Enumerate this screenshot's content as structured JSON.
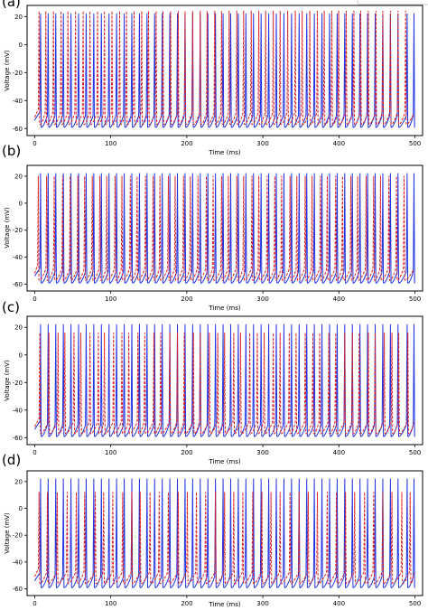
{
  "colors": {
    "series_a": "#2233e0",
    "series_b": "#e02020",
    "axis": "#000000",
    "background": "#ffffff"
  },
  "chart_data": [
    {
      "type": "line",
      "panel_label": "(a)",
      "xlabel": "Time (ms)",
      "ylabel": "Voltage (mV)",
      "xlim": [
        -10,
        510
      ],
      "ylim": [
        -65,
        28
      ],
      "xticks": [
        0,
        100,
        200,
        300,
        400,
        500
      ],
      "yticks": [
        -60,
        -40,
        -20,
        0,
        20
      ],
      "grid": false,
      "series": [
        {
          "style": "solid",
          "color": "#2233e0",
          "peak": 22,
          "trough": -58,
          "spike_times": [
            8,
            18,
            28,
            38,
            48,
            58,
            68,
            78,
            88,
            98,
            108,
            118,
            128,
            138,
            148,
            158,
            168,
            178,
            188,
            198,
            208,
            218,
            228,
            238,
            248,
            258,
            268,
            278,
            288,
            298,
            308,
            318,
            328,
            338,
            348,
            358,
            368,
            378,
            388,
            398,
            408,
            418,
            428,
            438,
            448,
            458,
            468,
            478,
            490,
            499
          ]
        },
        {
          "style": "dashed",
          "color": "#e02020",
          "peak": 24,
          "trough": -56,
          "spike_times": [
            6,
            15,
            25,
            35,
            44,
            54,
            64,
            73,
            83,
            92,
            102,
            112,
            121,
            131,
            141,
            150,
            160,
            169,
            179,
            189,
            198,
            208,
            218,
            227,
            237,
            246,
            256,
            266,
            275,
            285,
            295,
            304,
            314,
            323,
            333,
            343,
            352,
            362,
            372,
            381,
            391,
            400,
            410,
            420,
            429,
            439,
            449,
            458,
            468,
            478,
            488
          ]
        }
      ]
    },
    {
      "type": "line",
      "panel_label": "(b)",
      "xlabel": "Time (ms)",
      "ylabel": "Voltage (mV)",
      "xlim": [
        -10,
        510
      ],
      "ylim": [
        -65,
        28
      ],
      "xticks": [
        0,
        100,
        200,
        300,
        400,
        500
      ],
      "yticks": [
        -60,
        -40,
        -20,
        0,
        20
      ],
      "grid": false,
      "series": [
        {
          "style": "solid",
          "color": "#2233e0",
          "peak": 22,
          "trough": -58,
          "spike_times": [
            8,
            18,
            28,
            38,
            48,
            58,
            68,
            78,
            88,
            98,
            108,
            118,
            128,
            138,
            148,
            158,
            168,
            178,
            188,
            198,
            208,
            218,
            228,
            238,
            248,
            258,
            268,
            278,
            288,
            298,
            308,
            318,
            328,
            338,
            348,
            358,
            368,
            378,
            388,
            398,
            408,
            418,
            428,
            438,
            448,
            458,
            468,
            478,
            490,
            499
          ]
        },
        {
          "style": "dashed",
          "color": "#e02020",
          "peak": 20,
          "trough": -56,
          "spike_times": [
            5,
            16,
            26,
            37,
            47,
            57,
            66,
            76,
            86,
            95,
            106,
            115,
            126,
            135,
            146,
            156,
            165,
            176,
            185,
            196,
            205,
            215,
            226,
            235,
            246,
            255,
            266,
            275,
            286,
            295,
            306,
            316,
            325,
            336,
            345,
            356,
            365,
            376,
            385,
            396,
            405,
            416,
            425,
            436,
            446,
            455,
            466,
            476,
            486
          ]
        }
      ]
    },
    {
      "type": "line",
      "panel_label": "(c)",
      "xlabel": "Time (ms)",
      "ylabel": "Voltage (mV)",
      "xlim": [
        -10,
        510
      ],
      "ylim": [
        -65,
        28
      ],
      "xticks": [
        0,
        100,
        200,
        300,
        400,
        500
      ],
      "yticks": [
        -60,
        -40,
        -20,
        0,
        20
      ],
      "grid": false,
      "series": [
        {
          "style": "solid",
          "color": "#2233e0",
          "peak": 22,
          "trough": -58,
          "spike_times": [
            8,
            18,
            28,
            38,
            48,
            58,
            68,
            78,
            88,
            98,
            108,
            118,
            128,
            138,
            148,
            158,
            168,
            178,
            188,
            198,
            208,
            218,
            228,
            238,
            248,
            258,
            268,
            278,
            288,
            298,
            308,
            318,
            328,
            338,
            348,
            358,
            368,
            378,
            388,
            398,
            408,
            418,
            428,
            438,
            448,
            458,
            468,
            478,
            490,
            499
          ]
        },
        {
          "style": "dashed",
          "color": "#e02020",
          "peak": 16,
          "trough": -56,
          "spike_times": [
            7,
            19,
            31,
            40,
            52,
            61,
            73,
            84,
            92,
            104,
            115,
            124,
            136,
            145,
            157,
            166,
            178,
            188,
            197,
            209,
            218,
            230,
            241,
            250,
            262,
            271,
            283,
            293,
            302,
            314,
            323,
            335,
            344,
            356,
            366,
            375,
            387,
            396,
            408,
            418,
            427,
            439,
            448,
            460,
            470,
            479,
            491
          ]
        }
      ]
    },
    {
      "type": "line",
      "panel_label": "(d)",
      "xlabel": "Time (ms)",
      "ylabel": "Voltage (mV)",
      "xlim": [
        -10,
        510
      ],
      "ylim": [
        -65,
        28
      ],
      "xticks": [
        0,
        100,
        200,
        300,
        400,
        500
      ],
      "yticks": [
        -60,
        -40,
        -20,
        0,
        20
      ],
      "grid": false,
      "series": [
        {
          "style": "solid",
          "color": "#2233e0",
          "peak": 22,
          "trough": -58,
          "spike_times": [
            8,
            18,
            28,
            38,
            48,
            58,
            68,
            78,
            88,
            98,
            108,
            118,
            128,
            138,
            148,
            158,
            168,
            178,
            188,
            198,
            208,
            218,
            228,
            238,
            248,
            258,
            268,
            278,
            288,
            298,
            308,
            318,
            328,
            338,
            348,
            358,
            368,
            378,
            388,
            398,
            408,
            418,
            428,
            438,
            448,
            458,
            468,
            478,
            490,
            499
          ]
        },
        {
          "style": "dashed",
          "color": "#e02020",
          "peak": 12,
          "trough": -55,
          "spike_times": [
            6,
            17,
            30,
            43,
            55,
            66,
            80,
            91,
            103,
            116,
            128,
            139,
            152,
            164,
            176,
            189,
            201,
            213,
            225,
            238,
            250,
            262,
            274,
            287,
            299,
            311,
            323,
            336,
            348,
            360,
            372,
            385,
            397,
            409,
            421,
            434,
            446,
            458,
            470,
            483,
            494
          ]
        }
      ]
    }
  ]
}
